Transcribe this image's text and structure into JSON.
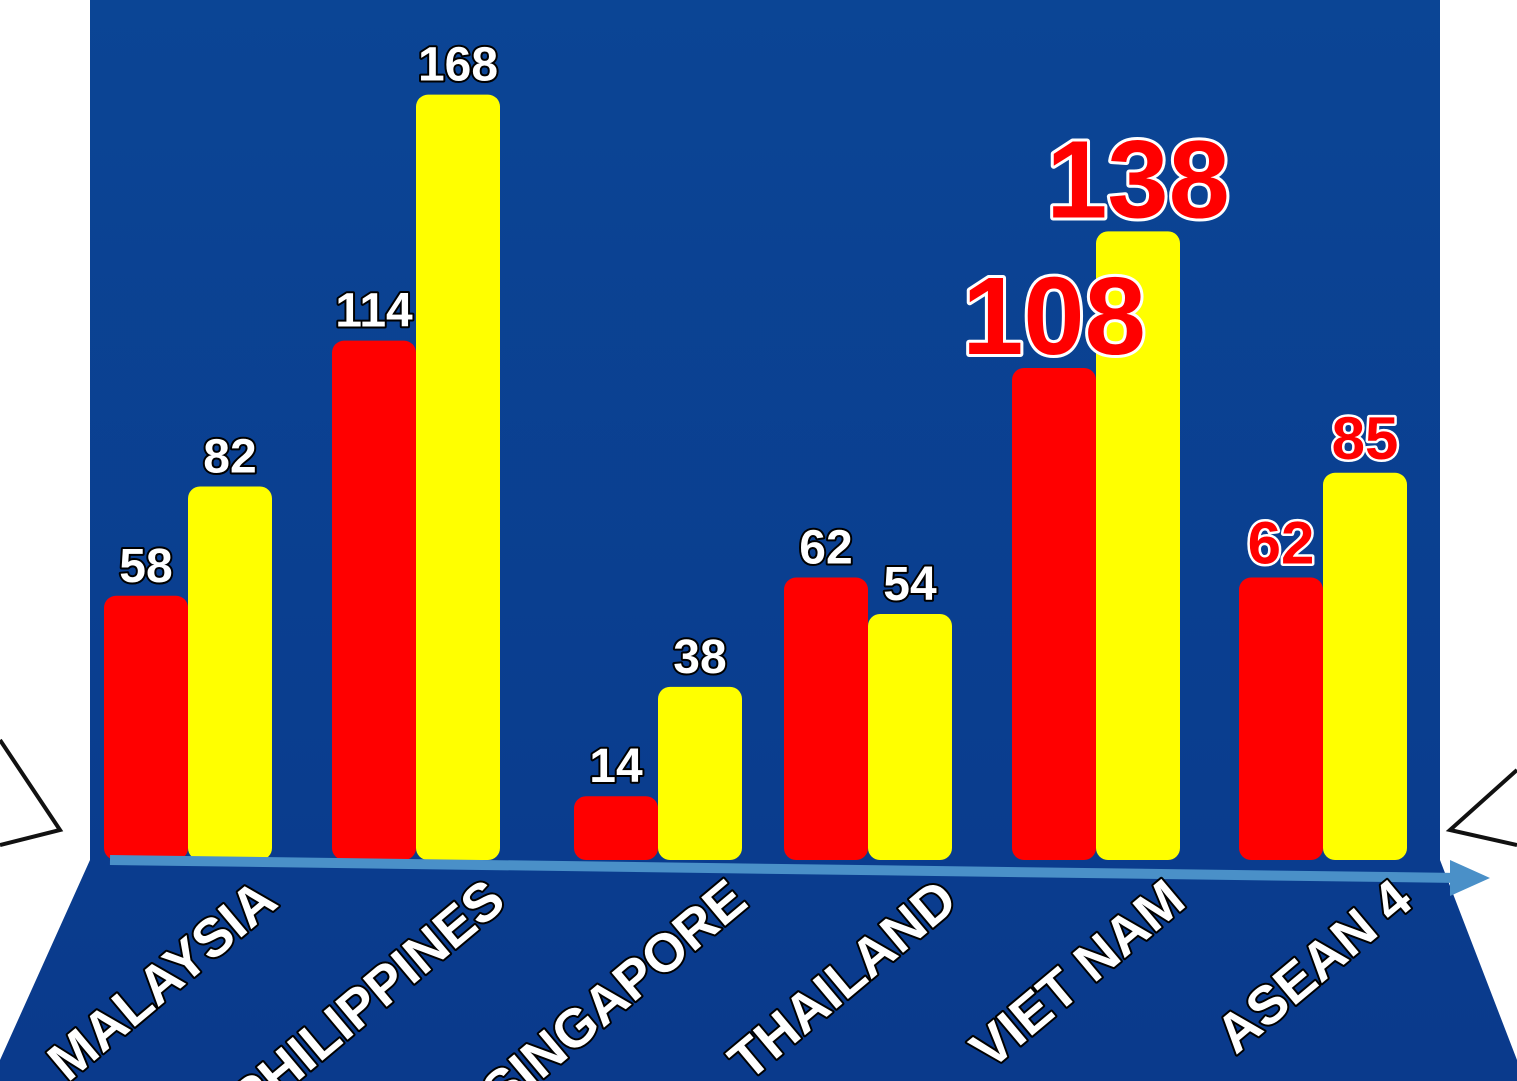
{
  "chart_data": {
    "type": "bar",
    "categories": [
      "MALAYSIA",
      "PHILIPPINES",
      "SINGAPORE",
      "THAILAND",
      "VIET NAM",
      "ASEAN 4"
    ],
    "series": [
      {
        "color": "#ff0000",
        "values": [
          58,
          114,
          14,
          62,
          108,
          62
        ]
      },
      {
        "color": "#ffff00",
        "values": [
          82,
          168,
          38,
          54,
          138,
          85
        ]
      }
    ],
    "ylim": [
      0,
      180
    ]
  }
}
